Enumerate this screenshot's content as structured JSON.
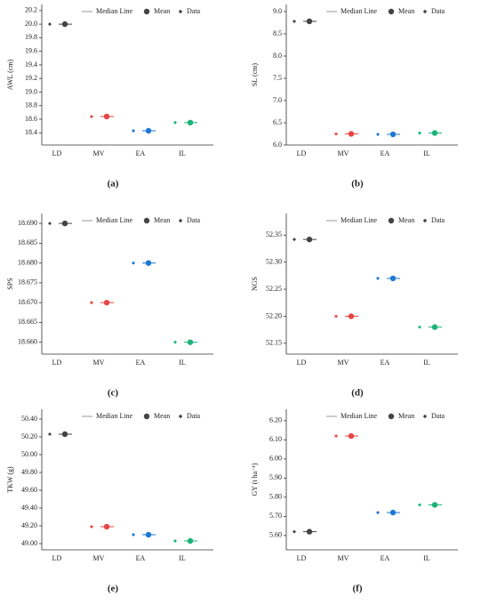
{
  "chart_data": [
    {
      "type": "dot",
      "panel": "(a)",
      "ylabel": "AWL (cm)",
      "legend": [
        "Median Line",
        "Mean",
        "Data"
      ],
      "categories": [
        "LD",
        "MV",
        "EA",
        "IL"
      ],
      "values": [
        20.0,
        18.64,
        18.43,
        18.55
      ],
      "colors": [
        "#444444",
        "#e84545",
        "#1f78d1",
        "#1bb37a"
      ],
      "ylim": [
        18.22,
        20.29
      ],
      "yticks": [
        18.4,
        18.6,
        18.8,
        {
          "value": 19,
          "label": "19.0"
        },
        19.2,
        19.4,
        19.6,
        19.8,
        {
          "value": 20,
          "label": "20.0"
        },
        20.2
      ]
    },
    {
      "type": "dot",
      "panel": "(b)",
      "ylabel": "SL (cm)",
      "legend": [
        "Median Line",
        "Mean",
        "Data"
      ],
      "categories": [
        "LD",
        "MV",
        "EA",
        "IL"
      ],
      "values": [
        8.78,
        6.25,
        6.24,
        6.27
      ],
      "colors": [
        "#444444",
        "#e84545",
        "#1f78d1",
        "#1bb37a"
      ],
      "ylim": [
        6.0,
        9.16
      ],
      "yticks": [
        {
          "value": 6,
          "label": "6.0"
        },
        6.5,
        {
          "value": 7,
          "label": "7.0"
        },
        7.5,
        {
          "value": 8,
          "label": "8.0"
        },
        8.5,
        {
          "value": 9,
          "label": "9.0"
        }
      ]
    },
    {
      "type": "dot",
      "panel": "(c)",
      "ylabel": "SPS",
      "legend": [
        "Median Line",
        "Mean",
        "Data"
      ],
      "categories": [
        "LD",
        "MV",
        "EA",
        "IL"
      ],
      "values": [
        18.69,
        18.67,
        18.68,
        18.66
      ],
      "colors": [
        "#444444",
        "#e84545",
        "#1f78d1",
        "#1bb37a"
      ],
      "ylim": [
        18.657,
        18.6925
      ],
      "yticks": [
        {
          "value": 18.66,
          "label": "18.660"
        },
        18.665,
        {
          "value": 18.67,
          "label": "18.670"
        },
        18.675,
        {
          "value": 18.68,
          "label": "18.680"
        },
        18.685,
        {
          "value": 18.69,
          "label": "18.690"
        }
      ]
    },
    {
      "type": "dot",
      "panel": "(d)",
      "ylabel": "NGS",
      "legend": [
        "Median Line",
        "Mean",
        "Data"
      ],
      "categories": [
        "LD",
        "MV",
        "EA",
        "IL"
      ],
      "values": [
        52.342,
        52.2,
        52.27,
        52.18
      ],
      "colors": [
        "#444444",
        "#e84545",
        "#1f78d1",
        "#1bb37a"
      ],
      "ylim": [
        52.13,
        52.39
      ],
      "yticks": [
        52.15,
        {
          "value": 52.2,
          "label": "52.20"
        },
        52.25,
        {
          "value": 52.3,
          "label": "52.30"
        },
        52.35
      ]
    },
    {
      "type": "dot",
      "panel": "(e)",
      "ylabel": "TKW (g)",
      "legend": [
        "Median Line",
        "Mean",
        "Data"
      ],
      "categories": [
        "LD",
        "MV",
        "EA",
        "IL"
      ],
      "values": [
        50.23,
        49.19,
        49.1,
        49.03
      ],
      "colors": [
        "#444444",
        "#e84545",
        "#1f78d1",
        "#1bb37a"
      ],
      "ylim": [
        48.93,
        50.51
      ],
      "yticks": [
        {
          "value": 49,
          "label": "49.00"
        },
        {
          "value": 49.2,
          "label": "49.20"
        },
        {
          "value": 49.4,
          "label": "49.40"
        },
        {
          "value": 49.6,
          "label": "49.60"
        },
        {
          "value": 49.8,
          "label": "49.80"
        },
        {
          "value": 50,
          "label": "50.00"
        },
        {
          "value": 50.2,
          "label": "50.20"
        },
        {
          "value": 50.4,
          "label": "50.40"
        }
      ]
    },
    {
      "type": "dot",
      "panel": "(f)",
      "ylabel": "GY (t ha⁻¹)",
      "legend": [
        "Median Line",
        "Mean",
        "Data"
      ],
      "categories": [
        "LD",
        "MV",
        "EA",
        "IL"
      ],
      "values": [
        5.62,
        6.12,
        5.72,
        5.76
      ],
      "colors": [
        "#444444",
        "#e84545",
        "#1f78d1",
        "#1bb37a"
      ],
      "ylim": [
        5.525,
        6.26
      ],
      "yticks": [
        {
          "value": 5.6,
          "label": "5.60"
        },
        {
          "value": 5.7,
          "label": "5.70"
        },
        {
          "value": 5.8,
          "label": "5.80"
        },
        {
          "value": 5.9,
          "label": "5.90"
        },
        {
          "value": 6,
          "label": "6.00"
        },
        {
          "value": 6.1,
          "label": "6.10"
        },
        {
          "value": 6.2,
          "label": "6.20"
        }
      ]
    }
  ]
}
